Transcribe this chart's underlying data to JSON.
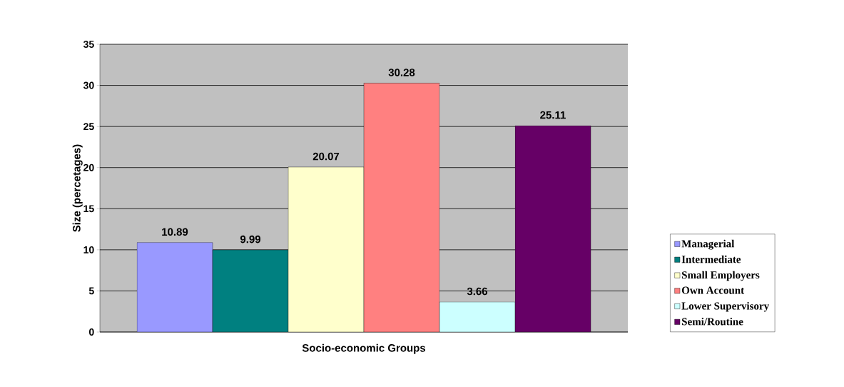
{
  "chart_data": {
    "type": "bar",
    "xlabel": "Socio-economic Groups",
    "ylabel": "Size (percetages)",
    "categories": [
      null
    ],
    "series": [
      {
        "name": "Managerial",
        "color": "#9999ff",
        "values": [
          10.89
        ]
      },
      {
        "name": "Intermediate",
        "color": "#008080",
        "values": [
          9.99
        ]
      },
      {
        "name": "Small Employers",
        "color": "#ffffcc",
        "values": [
          20.07
        ]
      },
      {
        "name": "Own Account",
        "color": "#ff8080",
        "values": [
          30.28
        ]
      },
      {
        "name": "Lower Supervisory",
        "color": "#ccffff",
        "values": [
          3.66
        ]
      },
      {
        "name": "Semi/Routine",
        "color": "#660066",
        "values": [
          25.11
        ]
      }
    ],
    "ylim": [
      0,
      35
    ],
    "yticks": [
      0,
      5,
      10,
      15,
      20,
      25,
      30,
      35
    ],
    "grid": "y",
    "legend": "right",
    "data_labels": true
  }
}
